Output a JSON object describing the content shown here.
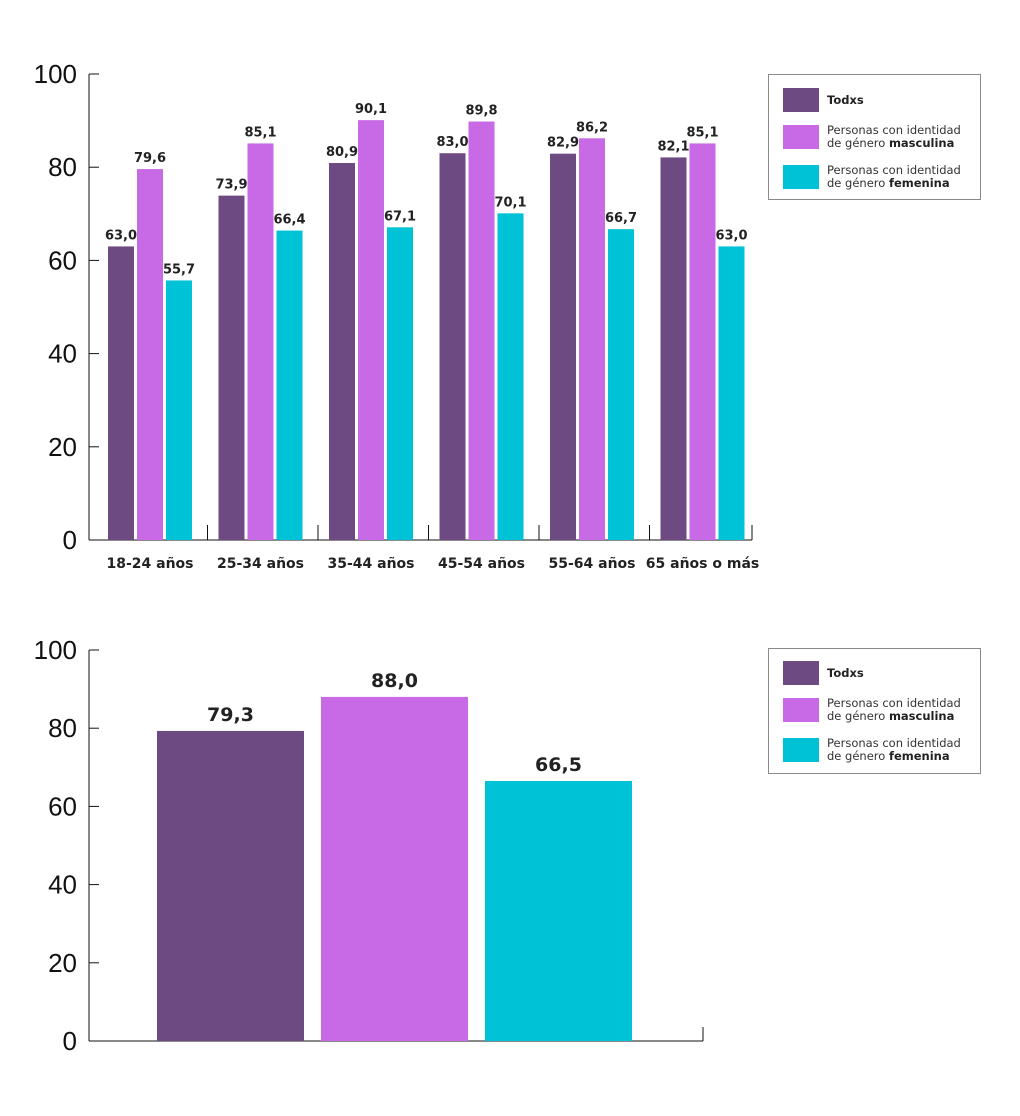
{
  "colors": {
    "todxs": "#6e4a83",
    "masculina": "#c86ae6",
    "femenina": "#00c2d6"
  },
  "chart_data": [
    {
      "type": "bar",
      "title": "",
      "xlabel": "",
      "ylabel": "",
      "ylim": [
        0,
        100
      ],
      "yticks": [
        "0",
        "20",
        "40",
        "60",
        "80",
        "100"
      ],
      "grid": false,
      "legend_position": "top-right",
      "categories": [
        "18-24 años",
        "25-34 años",
        "35-44 años",
        "45-54 años",
        "55-64 años",
        "65 años o más"
      ],
      "series": [
        {
          "name": "Todxs",
          "values": [
            63.0,
            73.9,
            80.9,
            83.0,
            82.9,
            82.1
          ],
          "labels": [
            "63,0",
            "73,9",
            "80,9",
            "83,0",
            "82,9",
            "82,1"
          ]
        },
        {
          "name": "Personas con identidad de género masculina",
          "values": [
            79.6,
            85.1,
            90.1,
            89.8,
            86.2,
            85.1
          ],
          "labels": [
            "79,6",
            "85,1",
            "90,1",
            "89,8",
            "86,2",
            "85,1"
          ]
        },
        {
          "name": "Personas con identidad de género femenina",
          "values": [
            55.7,
            66.4,
            67.1,
            70.1,
            66.7,
            63.0
          ],
          "labels": [
            "55,7",
            "66,4",
            "67,1",
            "70,1",
            "66,7",
            "63,0"
          ]
        }
      ]
    },
    {
      "type": "bar",
      "title": "",
      "xlabel": "",
      "ylabel": "",
      "ylim": [
        0,
        100
      ],
      "yticks": [
        "0",
        "20",
        "40",
        "60",
        "80",
        "100"
      ],
      "grid": false,
      "legend_position": "top-right",
      "categories": [
        ""
      ],
      "series": [
        {
          "name": "Todxs",
          "values": [
            79.3
          ],
          "labels": [
            "79,3"
          ]
        },
        {
          "name": "Personas con identidad de género masculina",
          "values": [
            88.0
          ],
          "labels": [
            "88,0"
          ]
        },
        {
          "name": "Personas con identidad de género femenina",
          "values": [
            66.5
          ],
          "labels": [
            "66,5"
          ]
        }
      ]
    }
  ],
  "legend": {
    "todxs": "Todxs",
    "masc_prefix": "Personas con identidad",
    "masc_mid": "de género ",
    "masc_bold": "masculina",
    "fem_prefix": "Personas con identidad",
    "fem_mid": "de género ",
    "fem_bold": "femenina"
  }
}
